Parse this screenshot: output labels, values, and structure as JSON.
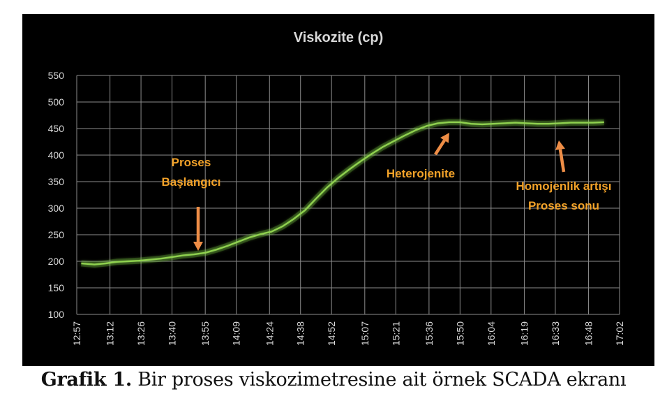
{
  "chart_data": {
    "type": "line",
    "title": "Viskozite (cp)",
    "xlabel": "",
    "ylabel": "",
    "ylim": [
      100,
      550
    ],
    "y_ticks": [
      100,
      150,
      200,
      250,
      300,
      350,
      400,
      450,
      500,
      550
    ],
    "x_ticks": [
      "12:57",
      "13:12",
      "13:26",
      "13:40",
      "13:55",
      "14:09",
      "14:24",
      "14:38",
      "14:52",
      "15:07",
      "15:21",
      "15:36",
      "15:50",
      "16:04",
      "16:19",
      "16:33",
      "16:48",
      "17:02"
    ],
    "grid": true,
    "line_color": "#8fd14f",
    "series": [
      {
        "x": [
          "12:59",
          "13:05",
          "13:10",
          "13:15",
          "13:20",
          "13:25",
          "13:30",
          "13:35",
          "13:40",
          "13:45",
          "13:50",
          "13:55",
          "14:00",
          "14:05",
          "14:10",
          "14:15",
          "14:20",
          "14:25",
          "14:30",
          "14:35",
          "14:40",
          "14:45",
          "14:50",
          "14:55",
          "15:00",
          "15:05",
          "15:10",
          "15:15",
          "15:20",
          "15:25",
          "15:30",
          "15:35",
          "15:40",
          "15:45",
          "15:50",
          "15:55",
          "16:00",
          "16:05",
          "16:10",
          "16:15",
          "16:20",
          "16:25",
          "16:30",
          "16:35",
          "16:40",
          "16:45",
          "16:50",
          "16:55"
        ],
        "values": [
          196,
          194,
          196,
          199,
          200,
          201,
          203,
          205,
          208,
          211,
          213,
          216,
          222,
          229,
          237,
          245,
          251,
          256,
          266,
          280,
          296,
          318,
          339,
          357,
          373,
          388,
          402,
          415,
          426,
          437,
          447,
          455,
          460,
          462,
          462,
          459,
          458,
          459,
          460,
          461,
          460,
          459,
          459,
          460,
          461,
          461,
          461,
          462
        ]
      }
    ],
    "annotations": [
      {
        "text": [
          "Proses",
          "Başlangıcı"
        ],
        "color": "#f2a229"
      },
      {
        "text": [
          "Heterojenite"
        ],
        "color": "#f2a229"
      },
      {
        "text": [
          "Homojenlik artışı",
          "Proses sonu"
        ],
        "color": "#f2a229"
      }
    ],
    "colors": {
      "background": "#000000",
      "grid": "#8c8c8c",
      "text": "#d9d9d9",
      "arrow": "#ee8d46",
      "annotation": "#f2a229"
    }
  },
  "caption": {
    "bold": "Grafik 1.",
    "text": " Bir proses viskozimetresine ait örnek SCADA ekranı"
  }
}
